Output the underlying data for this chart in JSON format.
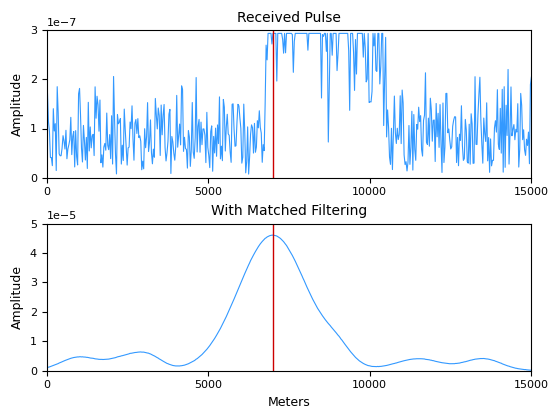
{
  "title1": "Received Pulse",
  "title2": "With Matched Filtering",
  "ylabel1": "Amplitude",
  "ylabel2": "Amplitude",
  "xlabel2": "Meters",
  "xlim": [
    0,
    15000
  ],
  "ylim1": [
    0,
    3e-07
  ],
  "ylim2": [
    0,
    5e-05
  ],
  "vline_x": 7000,
  "vline_color": "#cc0000",
  "line_color": "#3399ff",
  "line_color2": "#3399ff",
  "seed": 42,
  "target_range": 7000,
  "num_points": 500,
  "max_range": 15000
}
